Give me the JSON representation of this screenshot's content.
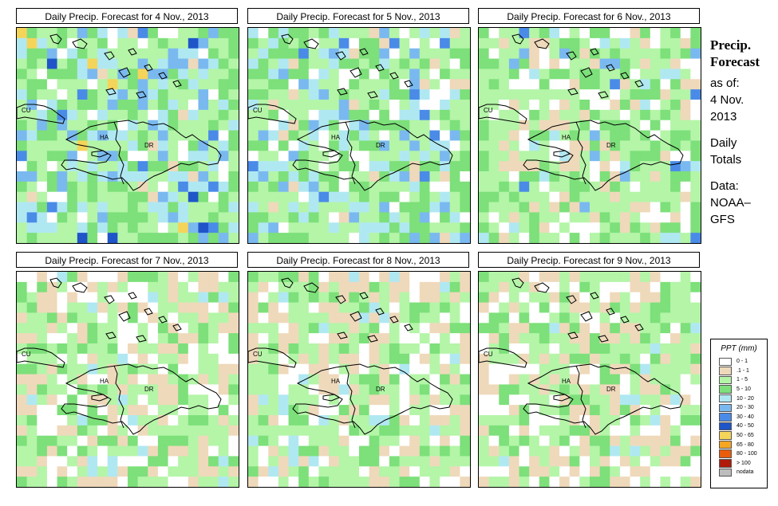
{
  "panels": [
    {
      "title": "Daily Precip. Forecast for  4 Nov., 2013",
      "seed": 11,
      "profile": "wet"
    },
    {
      "title": "Daily Precip. Forecast for  5 Nov., 2013",
      "seed": 23,
      "profile": "medium"
    },
    {
      "title": "Daily Precip. Forecast for  6 Nov., 2013",
      "seed": 37,
      "profile": "light"
    },
    {
      "title": "Daily Precip. Forecast for  7 Nov., 2013",
      "seed": 41,
      "profile": "dry"
    },
    {
      "title": "Daily Precip. Forecast for  8 Nov., 2013",
      "seed": 53,
      "profile": "dry"
    },
    {
      "title": "Daily Precip. Forecast for  9 Nov., 2013",
      "seed": 67,
      "profile": "dry"
    }
  ],
  "region_labels": {
    "cuba": "CU",
    "haiti": "HA",
    "dominican_republic": "DR"
  },
  "side": {
    "title_line1": "Precip.",
    "title_line2": "Forecast",
    "asof": "as of:",
    "date_line1": "4 Nov.",
    "date_line2": "2013",
    "daily_line1": "Daily",
    "daily_line2": "Totals",
    "data_line1": "Data:",
    "data_line2": "NOAA–",
    "data_line3": "GFS"
  },
  "legend": {
    "title": "PPT (mm)",
    "items": [
      {
        "label": "0 - 1",
        "color": "#ffffff"
      },
      {
        "label": ".1 - 1",
        "color": "#efd9bb"
      },
      {
        "label": "1 - 5",
        "color": "#b4f5a8"
      },
      {
        "label": "5 - 10",
        "color": "#7de07a"
      },
      {
        "label": "10 - 20",
        "color": "#b0e8f2"
      },
      {
        "label": "20 - 30",
        "color": "#7ab9ef"
      },
      {
        "label": "30 - 40",
        "color": "#4a8be8"
      },
      {
        "label": "40 - 50",
        "color": "#1f55c9"
      },
      {
        "label": "50 - 65",
        "color": "#f5d45a"
      },
      {
        "label": "65 - 80",
        "color": "#f5a623"
      },
      {
        "label": "80 - 100",
        "color": "#e85c0c"
      },
      {
        "label": "> 100",
        "color": "#b01a0a"
      },
      {
        "label": "nodata",
        "color": "#bdbdbd"
      }
    ]
  }
}
